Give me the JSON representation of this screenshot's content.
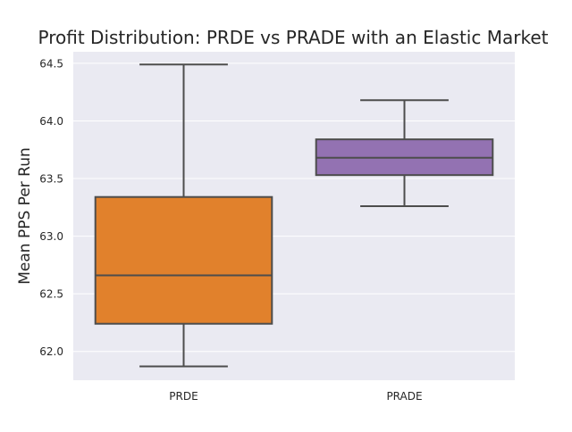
{
  "chart_data": {
    "type": "box",
    "title": "Profit Distribution: PRDE vs PRADE with an Elastic Market",
    "xlabel": "",
    "ylabel": "Mean PPS Per Run",
    "ylim": [
      61.75,
      64.6
    ],
    "yticks": [
      "62.0",
      "62.5",
      "63.0",
      "63.5",
      "64.0",
      "64.5"
    ],
    "grid": true,
    "categories": [
      "PRDE",
      "PRADE"
    ],
    "boxes": [
      {
        "name": "PRDE",
        "whisker_low": 61.87,
        "q1": 62.24,
        "median": 62.66,
        "q3": 63.34,
        "whisker_high": 64.49,
        "color": "#e1812c"
      },
      {
        "name": "PRADE",
        "whisker_low": 63.26,
        "q1": 63.53,
        "median": 63.68,
        "q3": 63.84,
        "whisker_high": 64.18,
        "color": "#9372b2"
      }
    ],
    "colors": {
      "plot_background": "#eaeaf2",
      "grid": "#ffffff",
      "line": "#4d4d4d",
      "text": "#262626"
    }
  }
}
